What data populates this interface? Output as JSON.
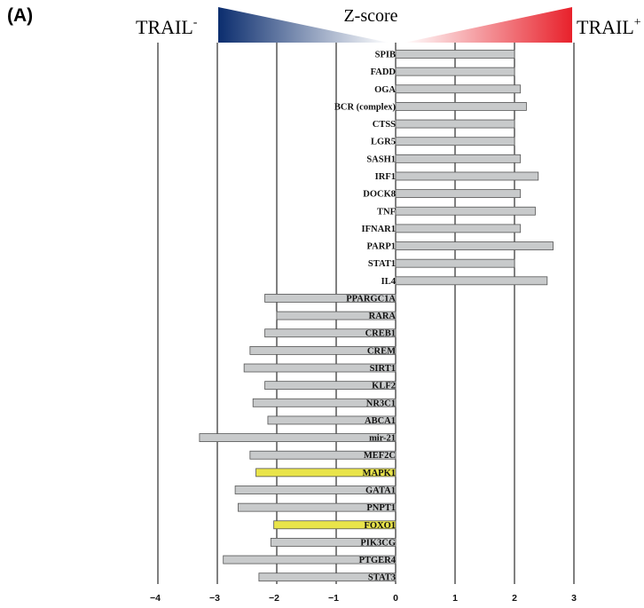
{
  "panel_label": "(A)",
  "header": {
    "left_label": "TRAIL",
    "left_sup": "-",
    "center_label": "Z-score",
    "right_label": "TRAIL",
    "right_sup": "+"
  },
  "colors": {
    "bar_default": "#c8cacb",
    "bar_highlight": "#e9e44a",
    "gradient_neg_dark": "#0b2d6e",
    "gradient_pos_dark": "#e8212b"
  },
  "chart_data": {
    "type": "bar",
    "orientation": "horizontal",
    "xlabel": "",
    "ylabel": "",
    "xlim": [
      -4,
      3
    ],
    "xticks": [
      -4,
      -3,
      -2,
      -1,
      0,
      1,
      2,
      3
    ],
    "grid": "vertical lines at each tick",
    "categories": [
      "SPIB",
      "FADD",
      "OGA",
      "BCR (complex)",
      "CTSS",
      "LGR5",
      "SASH1",
      "IRF1",
      "DOCK8",
      "TNF",
      "IFNAR1",
      "PARP1",
      "STAT1",
      "IL4",
      "PPARGC1A",
      "RARA",
      "CREB1",
      "CREM",
      "SIRT1",
      "KLF2",
      "NR3C1",
      "ABCA1",
      "mir-21",
      "MEF2C",
      "MAPK1",
      "GATA1",
      "PNPT1",
      "FOXO1",
      "PIK3CG",
      "PTGER4",
      "STAT3"
    ],
    "values": [
      2.0,
      2.0,
      2.1,
      2.2,
      2.0,
      2.0,
      2.1,
      2.4,
      2.1,
      2.35,
      2.1,
      2.65,
      2.0,
      2.55,
      -2.2,
      -2.0,
      -2.2,
      -2.45,
      -2.55,
      -2.2,
      -2.4,
      -2.15,
      -3.3,
      -2.45,
      -2.35,
      -2.7,
      -2.65,
      -2.05,
      -2.1,
      -2.9,
      -2.3
    ],
    "highlighted": [
      "MAPK1",
      "FOXO1"
    ]
  }
}
